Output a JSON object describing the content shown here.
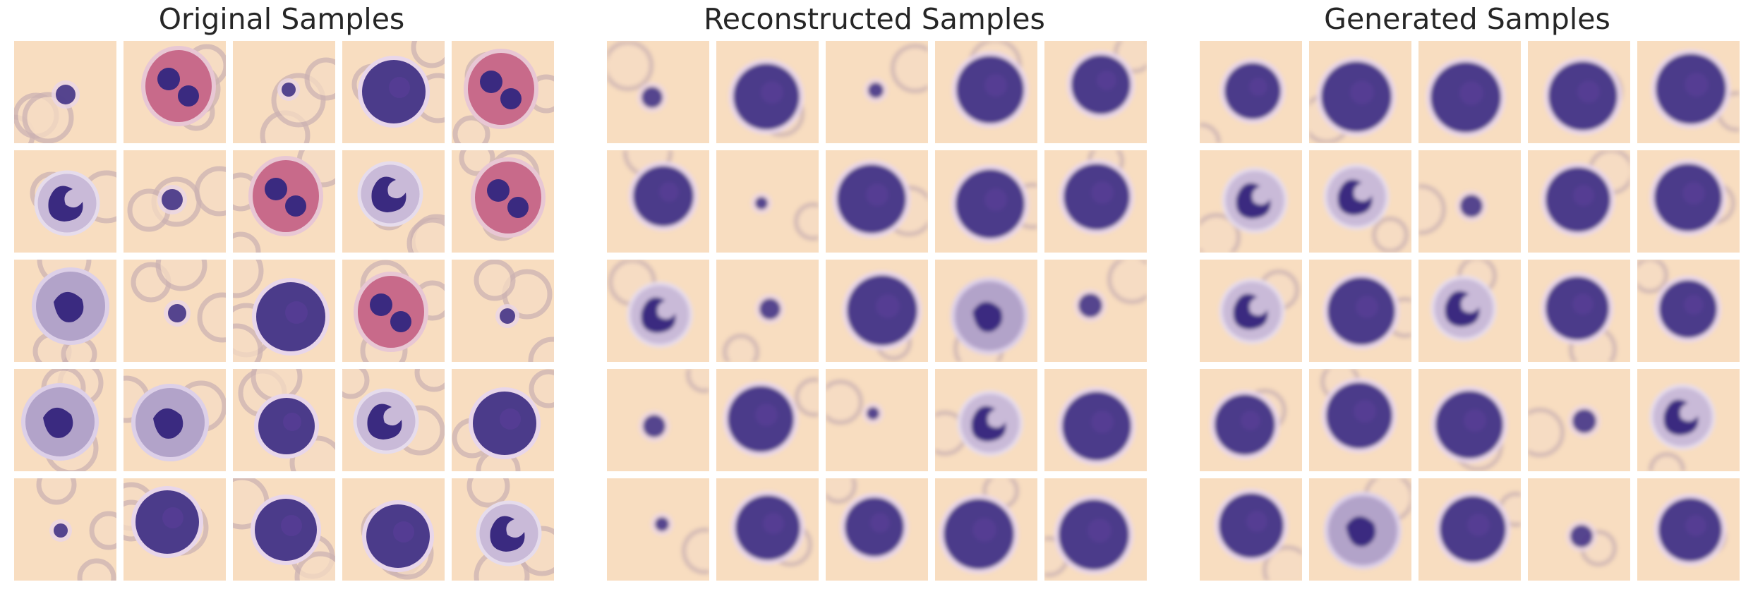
{
  "panels": [
    {
      "id": "original",
      "title": "Original Samples"
    },
    {
      "id": "reconstructed",
      "title": "Reconstructed Samples"
    },
    {
      "id": "generated",
      "title": "Generated Samples"
    }
  ],
  "colors": {
    "background": "#ffffff",
    "title_text": "#262626",
    "tile_background": "#f8ddc0",
    "rbc_ring": "#cdb3b3",
    "cell_purple": "#3a2a80",
    "cell_pink": "#c86a8a",
    "cytoplasm_lilac": "#b2a3c9"
  },
  "grid": {
    "rows": 5,
    "cols": 5
  }
}
